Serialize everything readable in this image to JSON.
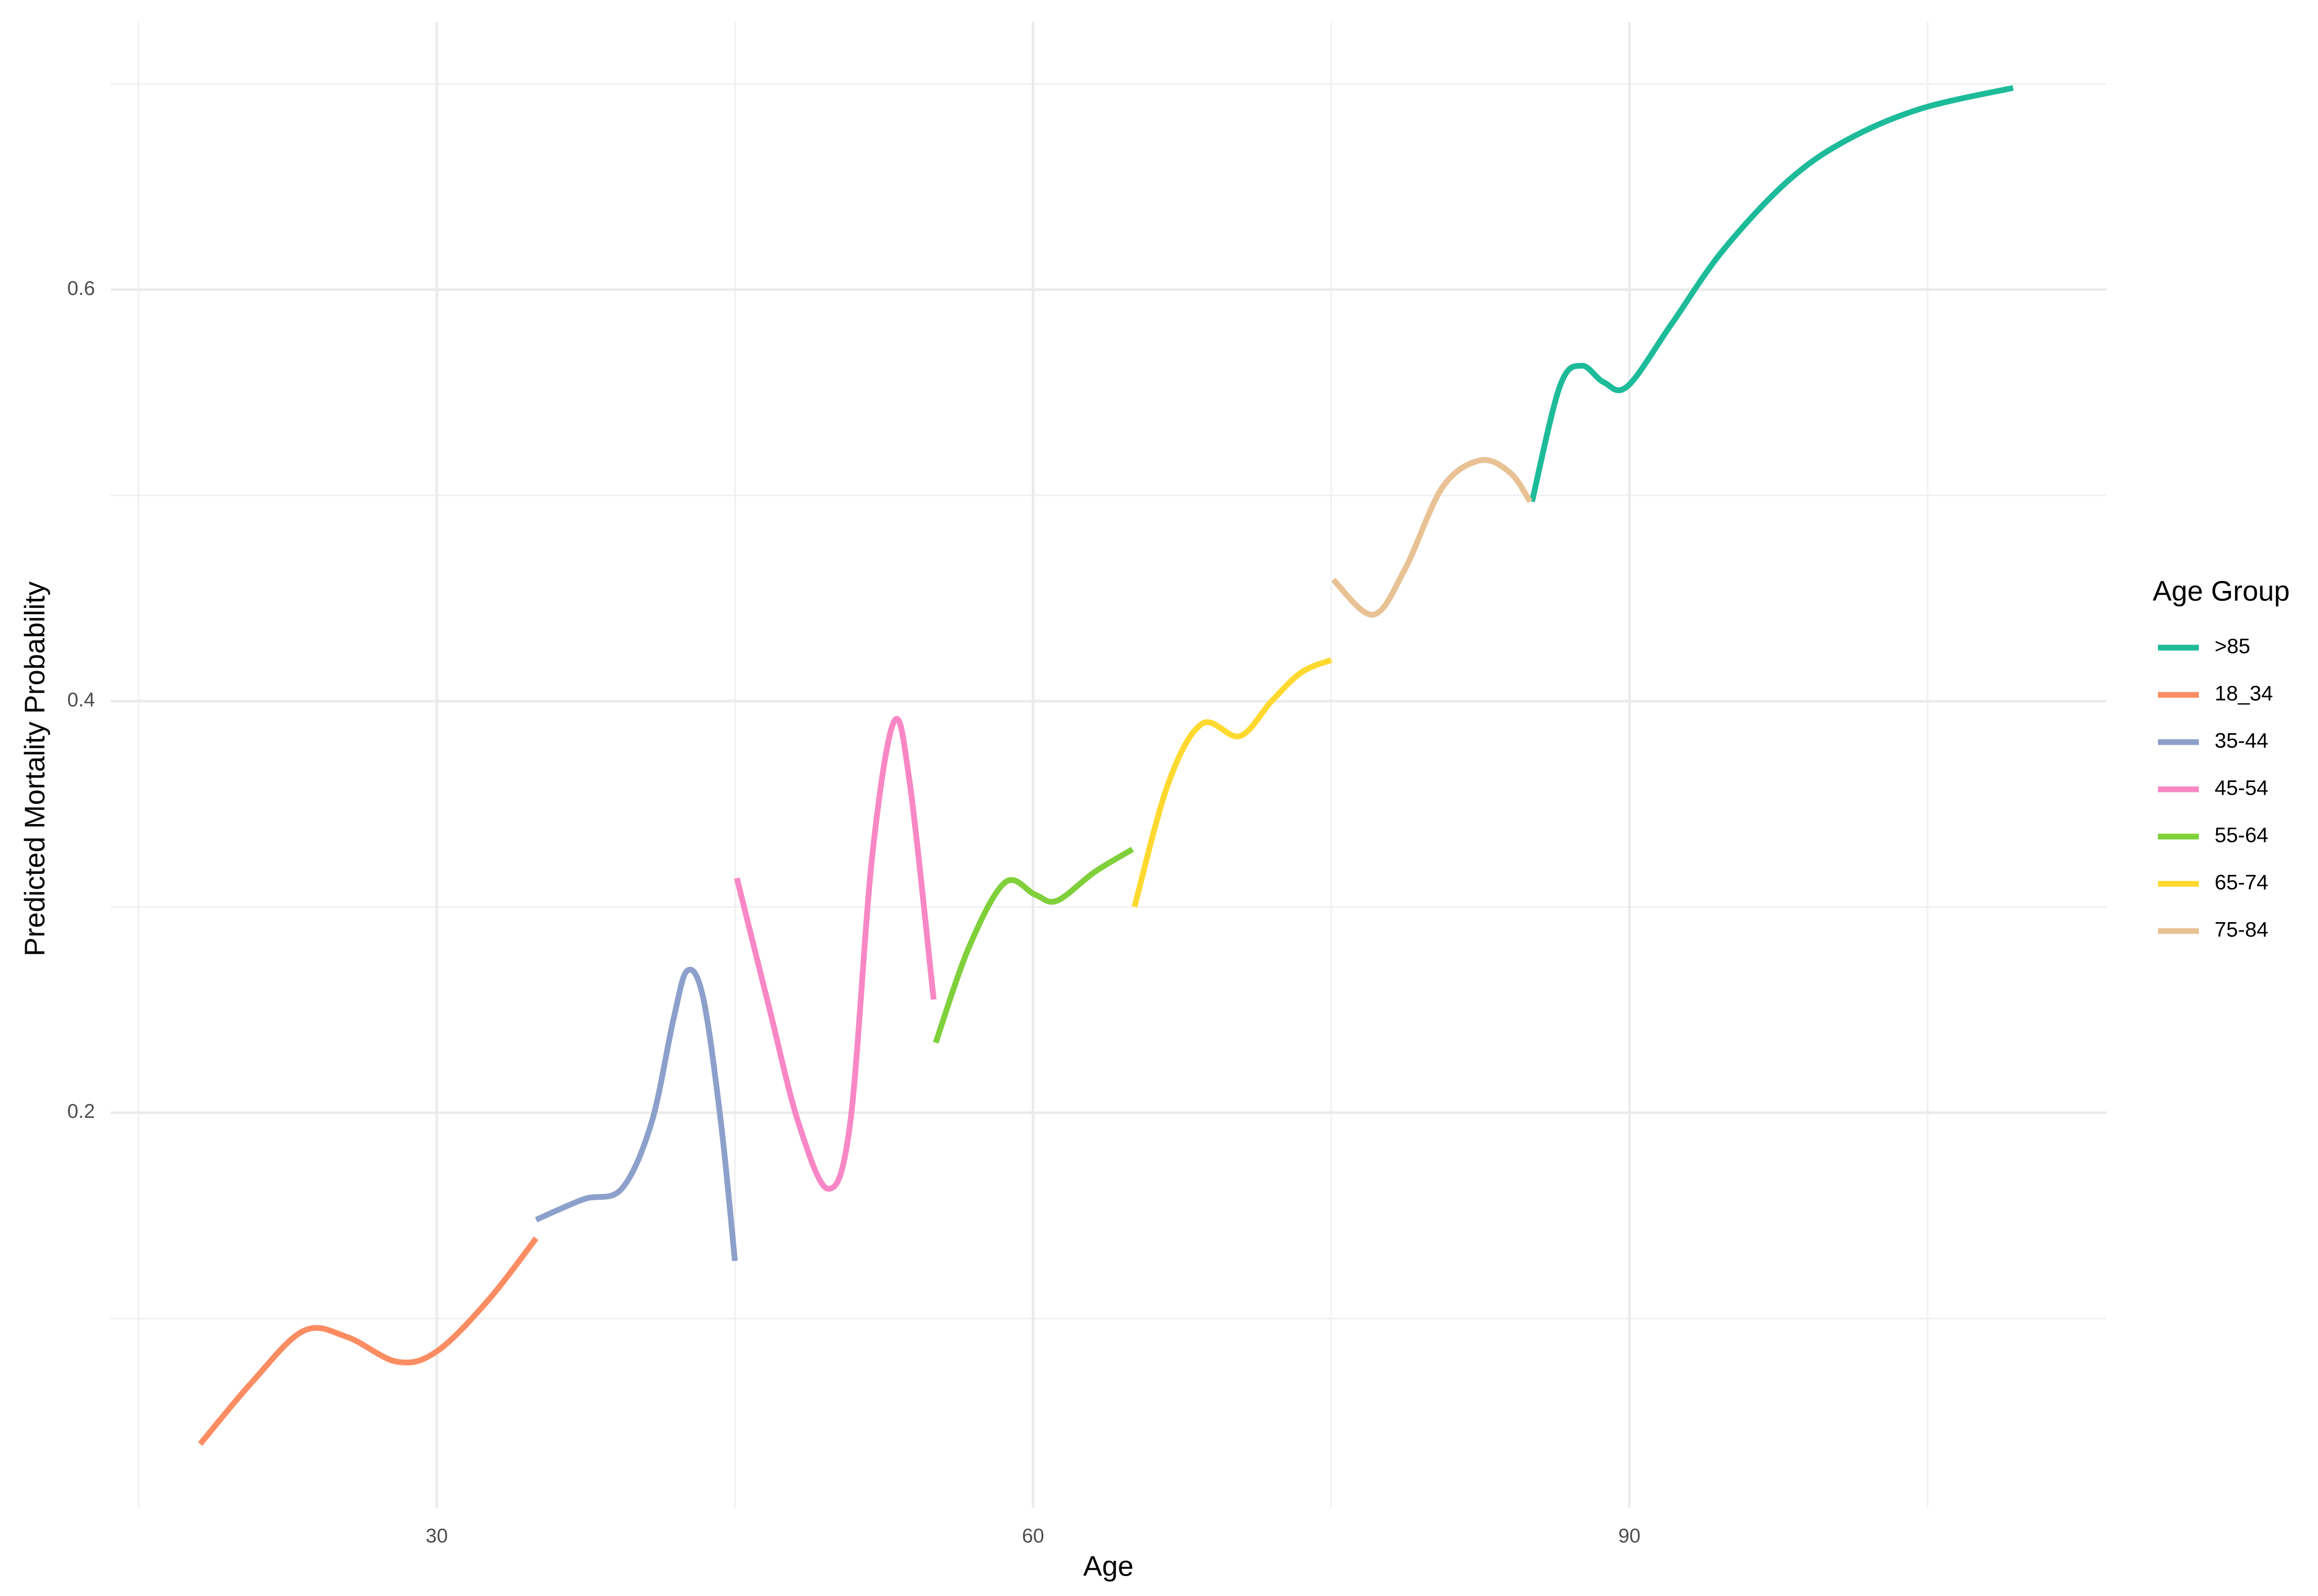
{
  "chart_data": {
    "type": "line",
    "x_label": "Age",
    "y_label": "Predicted Mortality Probability",
    "legend_title": "Age Group",
    "legend_position": "right",
    "grid": true,
    "xlim": [
      13.6,
      114.0
    ],
    "ylim": [
      0.008,
      0.73
    ],
    "xticks": [
      30,
      60,
      90
    ],
    "yticks": [
      0.2,
      0.4,
      0.6
    ],
    "minor_xticks": [
      15,
      45,
      75,
      105
    ],
    "minor_yticks": [
      0.1,
      0.3,
      0.5,
      0.7
    ],
    "series": [
      {
        "name": ">85",
        "color": "#1dbb99",
        "x": [
          85.1,
          86.5,
          87.6,
          88.7,
          89.9,
          92.1,
          94.7,
          98.0,
          101.0,
          104.7,
          109.3
        ],
        "values": [
          0.497,
          0.553,
          0.563,
          0.555,
          0.553,
          0.583,
          0.619,
          0.653,
          0.673,
          0.688,
          0.698
        ]
      },
      {
        "name": "18_34",
        "color": "#fc8d62",
        "x": [
          18.1,
          20.7,
          23.3,
          25.5,
          28.0,
          30.0,
          32.6,
          35.0
        ],
        "values": [
          0.039,
          0.069,
          0.094,
          0.091,
          0.079,
          0.084,
          0.109,
          0.139
        ]
      },
      {
        "name": "35-44",
        "color": "#8da0cb",
        "x": [
          35.0,
          37.4,
          39.3,
          40.8,
          41.9,
          42.6,
          43.4,
          44.3,
          45.0
        ],
        "values": [
          0.148,
          0.158,
          0.163,
          0.195,
          0.245,
          0.269,
          0.256,
          0.195,
          0.128
        ]
      },
      {
        "name": "45-54",
        "color": "#f987c5",
        "x": [
          45.1,
          46.7,
          48.2,
          49.7,
          50.8,
          51.9,
          53.0,
          53.8,
          55.0
        ],
        "values": [
          0.314,
          0.252,
          0.195,
          0.163,
          0.195,
          0.324,
          0.39,
          0.36,
          0.255
        ]
      },
      {
        "name": "55-64",
        "color": "#7fd03a",
        "x": [
          55.1,
          56.8,
          58.6,
          60.1,
          61.2,
          63.1,
          65.0
        ],
        "values": [
          0.234,
          0.281,
          0.312,
          0.306,
          0.303,
          0.317,
          0.328
        ]
      },
      {
        "name": "65-74",
        "color": "#ffd92f",
        "x": [
          65.1,
          66.8,
          68.5,
          70.4,
          72.0,
          73.5,
          75.0
        ],
        "values": [
          0.3,
          0.36,
          0.389,
          0.383,
          0.4,
          0.414,
          0.42
        ]
      },
      {
        "name": "75-84",
        "color": "#e8c294",
        "x": [
          75.1,
          77.1,
          78.7,
          80.6,
          82.5,
          84.0,
          85.0
        ],
        "values": [
          0.459,
          0.442,
          0.464,
          0.504,
          0.517,
          0.511,
          0.497
        ]
      }
    ]
  }
}
